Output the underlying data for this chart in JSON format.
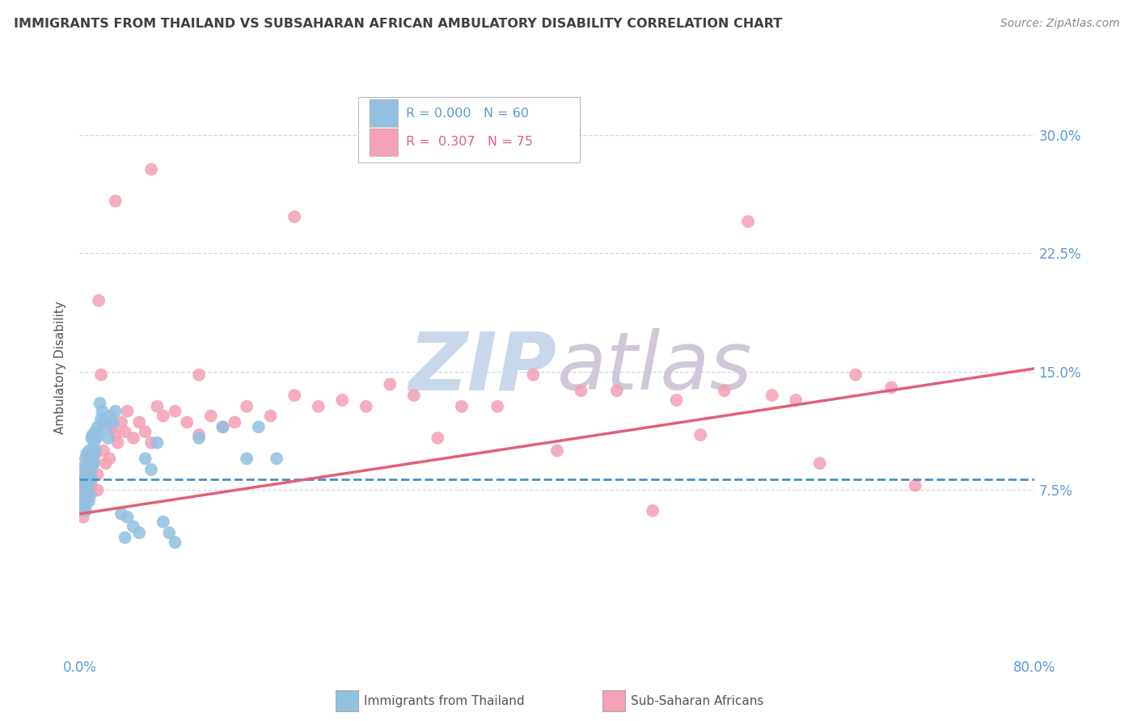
{
  "title": "IMMIGRANTS FROM THAILAND VS SUBSAHARAN AFRICAN AMBULATORY DISABILITY CORRELATION CHART",
  "source": "Source: ZipAtlas.com",
  "ylabel": "Ambulatory Disability",
  "legend_blue_r": "R = 0.000",
  "legend_blue_n": "N = 60",
  "legend_pink_r": "R =  0.307",
  "legend_pink_n": "N = 75",
  "ytick_labels": [
    "7.5%",
    "15.0%",
    "22.5%",
    "30.0%"
  ],
  "ytick_values": [
    0.075,
    0.15,
    0.225,
    0.3
  ],
  "xlim": [
    0.0,
    0.8
  ],
  "ylim": [
    -0.03,
    0.335
  ],
  "blue_color": "#92c0e0",
  "pink_color": "#f4a0b5",
  "blue_line_color": "#4a90c8",
  "pink_line_color": "#e0607a",
  "watermark_zip_color": "#c8d8ea",
  "watermark_atlas_color": "#d0c8d8",
  "background_color": "#ffffff",
  "grid_color": "#c8d8e8",
  "title_color": "#404040",
  "axis_label_color": "#5b9bd5",
  "source_color": "#888888",
  "blue_scatter_x": [
    0.002,
    0.003,
    0.003,
    0.004,
    0.004,
    0.004,
    0.005,
    0.005,
    0.005,
    0.005,
    0.006,
    0.006,
    0.006,
    0.007,
    0.007,
    0.007,
    0.008,
    0.008,
    0.008,
    0.008,
    0.009,
    0.009,
    0.009,
    0.01,
    0.01,
    0.01,
    0.011,
    0.011,
    0.012,
    0.012,
    0.013,
    0.013,
    0.014,
    0.015,
    0.016,
    0.017,
    0.018,
    0.019,
    0.02,
    0.022,
    0.024,
    0.026,
    0.028,
    0.03,
    0.035,
    0.038,
    0.04,
    0.045,
    0.05,
    0.055,
    0.06,
    0.065,
    0.07,
    0.075,
    0.08,
    0.1,
    0.12,
    0.14,
    0.15,
    0.165
  ],
  "blue_scatter_y": [
    0.08,
    0.072,
    0.065,
    0.09,
    0.082,
    0.068,
    0.095,
    0.085,
    0.078,
    0.062,
    0.098,
    0.088,
    0.075,
    0.092,
    0.083,
    0.07,
    0.1,
    0.09,
    0.08,
    0.068,
    0.095,
    0.085,
    0.072,
    0.108,
    0.095,
    0.082,
    0.11,
    0.098,
    0.105,
    0.092,
    0.112,
    0.1,
    0.108,
    0.115,
    0.11,
    0.13,
    0.12,
    0.125,
    0.118,
    0.115,
    0.108,
    0.122,
    0.118,
    0.125,
    0.06,
    0.045,
    0.058,
    0.052,
    0.048,
    0.095,
    0.088,
    0.105,
    0.055,
    0.048,
    0.042,
    0.108,
    0.115,
    0.095,
    0.115,
    0.095
  ],
  "pink_scatter_x": [
    0.002,
    0.003,
    0.003,
    0.004,
    0.004,
    0.005,
    0.005,
    0.006,
    0.006,
    0.007,
    0.007,
    0.008,
    0.008,
    0.009,
    0.009,
    0.01,
    0.01,
    0.011,
    0.012,
    0.013,
    0.015,
    0.015,
    0.016,
    0.018,
    0.02,
    0.022,
    0.025,
    0.028,
    0.03,
    0.032,
    0.035,
    0.038,
    0.04,
    0.045,
    0.05,
    0.055,
    0.06,
    0.065,
    0.07,
    0.08,
    0.09,
    0.1,
    0.11,
    0.12,
    0.13,
    0.14,
    0.16,
    0.18,
    0.2,
    0.22,
    0.24,
    0.26,
    0.28,
    0.3,
    0.32,
    0.35,
    0.38,
    0.4,
    0.42,
    0.45,
    0.48,
    0.5,
    0.52,
    0.54,
    0.56,
    0.58,
    0.6,
    0.62,
    0.65,
    0.68,
    0.7,
    0.03,
    0.06,
    0.1,
    0.18
  ],
  "pink_scatter_y": [
    0.075,
    0.068,
    0.058,
    0.08,
    0.065,
    0.088,
    0.072,
    0.082,
    0.07,
    0.085,
    0.075,
    0.09,
    0.078,
    0.095,
    0.082,
    0.088,
    0.078,
    0.092,
    0.095,
    0.098,
    0.085,
    0.075,
    0.195,
    0.148,
    0.1,
    0.092,
    0.095,
    0.115,
    0.11,
    0.105,
    0.118,
    0.112,
    0.125,
    0.108,
    0.118,
    0.112,
    0.105,
    0.128,
    0.122,
    0.125,
    0.118,
    0.11,
    0.122,
    0.115,
    0.118,
    0.128,
    0.122,
    0.135,
    0.128,
    0.132,
    0.128,
    0.142,
    0.135,
    0.108,
    0.128,
    0.128,
    0.148,
    0.1,
    0.138,
    0.138,
    0.062,
    0.132,
    0.11,
    0.138,
    0.245,
    0.135,
    0.132,
    0.092,
    0.148,
    0.14,
    0.078,
    0.258,
    0.278,
    0.148,
    0.248
  ],
  "blue_line_x": [
    0.0,
    0.8
  ],
  "blue_line_y": [
    0.082,
    0.082
  ],
  "pink_line_x": [
    0.0,
    0.8
  ],
  "pink_line_y": [
    0.06,
    0.152
  ]
}
